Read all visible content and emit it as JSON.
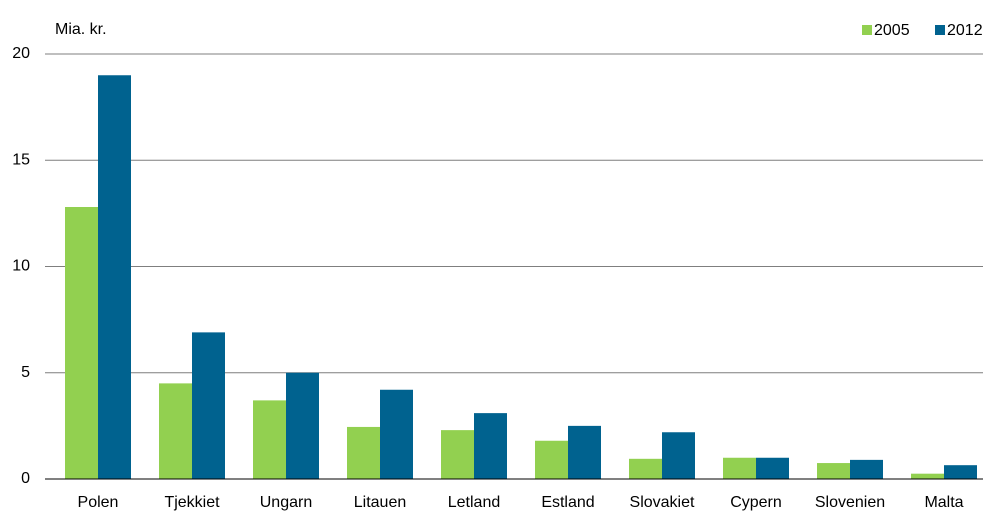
{
  "chart_data": {
    "type": "bar",
    "y_label": "Mia. kr.",
    "categories": [
      "Polen",
      "Tjekkiet",
      "Ungarn",
      "Litauen",
      "Letland",
      "Estland",
      "Slovakiet",
      "Cypern",
      "Slovenien",
      "Malta"
    ],
    "series": [
      {
        "name": "2005",
        "color": "#92d050",
        "values": [
          12.8,
          4.5,
          3.7,
          2.45,
          2.3,
          1.8,
          0.95,
          1.0,
          0.75,
          0.25
        ]
      },
      {
        "name": "2012",
        "color": "#00628f",
        "values": [
          19.0,
          6.9,
          5.0,
          4.2,
          3.1,
          2.5,
          2.2,
          1.0,
          0.9,
          0.65
        ]
      }
    ],
    "ylim": [
      0,
      20
    ],
    "yticks": [
      0,
      5,
      10,
      15,
      20
    ],
    "grid": true,
    "legend": "top-right"
  }
}
